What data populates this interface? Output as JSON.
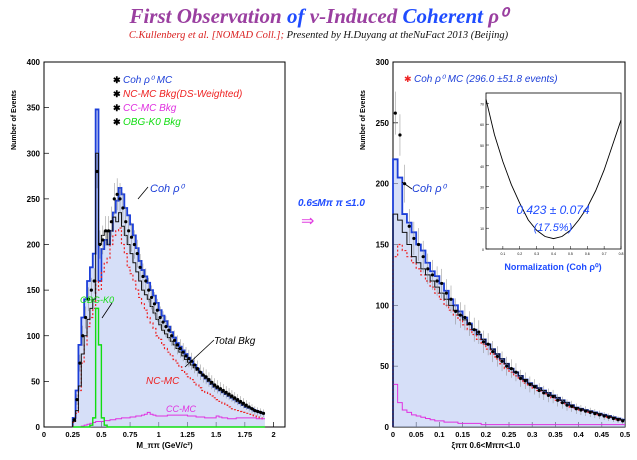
{
  "slide": {
    "title_parts": [
      {
        "text": "First Observation",
        "color": "#9a3fa0"
      },
      {
        "text": " of ",
        "color": "#1f4cff"
      },
      {
        "text": "ν-Induced",
        "color": "#9a3fa0"
      },
      {
        "text": " Coherent ",
        "color": "#1f4cff"
      },
      {
        "text": "ρ⁰",
        "color": "#9a3fa0"
      }
    ],
    "subtitle_parts": [
      {
        "text": "C.Kullenberg et al. [NOMAD Coll.];",
        "color": "#d92020"
      },
      {
        "text": "   Presented  by  H.Duyang  at  theNuFact 2013 (Beijing)",
        "color": "#111111"
      }
    ],
    "cut_label": "0.6≤Mπ π ≤1.0",
    "arrow": "⇒"
  },
  "colors": {
    "coh": "#1d3fd8",
    "coh_fill": "#b4c4f2",
    "nc": "#ee2222",
    "cc": "#e030e0",
    "obg": "#11dd11",
    "total": "#111111",
    "data": "#000000",
    "note_blue": "#1f4cff",
    "note_red": "#e03030"
  },
  "chart_data": [
    {
      "type": "histogram",
      "ylabel": "Number of Events",
      "xlabel": "M_ππ (GeV/c²)",
      "xlim": [
        0,
        2.1
      ],
      "ylim": [
        0,
        400
      ],
      "xticks": [
        0,
        0.25,
        0.5,
        0.75,
        1,
        1.25,
        1.5,
        1.75,
        2
      ],
      "xtick_labels": [
        "0",
        "0.25",
        "0.5",
        "0.75",
        "1",
        "1.25",
        "1.5",
        "1.75",
        "2"
      ],
      "yticks": [
        0,
        50,
        100,
        150,
        200,
        250,
        300,
        350,
        400
      ],
      "legend": [
        {
          "label": "Coh ρ⁰ MC",
          "color": "#1d3fd8"
        },
        {
          "label": "NC-MC Bkg(DS-Weighted)",
          "color": "#ee2222"
        },
        {
          "label": "CC-MC Bkg",
          "color": "#e030e0"
        },
        {
          "label": "OBG-K0 Bkg",
          "color": "#11dd11"
        }
      ],
      "annotations": [
        "Coh ρ⁰",
        "OBG-K0",
        "Total Bkg",
        "NC-MC",
        "CC-MC"
      ],
      "bin_width": 0.025,
      "bin_start": 0.25,
      "series": [
        {
          "name": "Coh ρ⁰ MC",
          "values": [
            10,
            40,
            90,
            120,
            140,
            160,
            175,
            190,
            348,
            160,
            195,
            205,
            200,
            215,
            235,
            248,
            262,
            255,
            240,
            232,
            222,
            210,
            196,
            182,
            172,
            165,
            158,
            150,
            144,
            136,
            128,
            122,
            116,
            110,
            104,
            98,
            92,
            88,
            84,
            80,
            76,
            72,
            68,
            64,
            60,
            56,
            53,
            50,
            47,
            44,
            42,
            40,
            38,
            36,
            34,
            32,
            30,
            28,
            26,
            24,
            22,
            21,
            20,
            18,
            17,
            16,
            15
          ]
        },
        {
          "name": "NC-MC Bkg(DS-Weighted)",
          "values": [
            5,
            15,
            40,
            70,
            90,
            110,
            120,
            130,
            160,
            150,
            170,
            180,
            185,
            200,
            210,
            215,
            218,
            200,
            190,
            175,
            168,
            160,
            150,
            142,
            135,
            128,
            120,
            114,
            108,
            100,
            96,
            90,
            86,
            82,
            78,
            74,
            70,
            66,
            62,
            58,
            55,
            52,
            49,
            46,
            43,
            40,
            38,
            36,
            34,
            32,
            30,
            28,
            26,
            24,
            22,
            20,
            19,
            18,
            17,
            16,
            15,
            14,
            13,
            12,
            11,
            10,
            9
          ]
        },
        {
          "name": "CC-MC Bkg",
          "values": [
            0,
            0,
            0,
            1,
            2,
            3,
            4,
            5,
            6,
            6,
            6,
            7,
            7,
            8,
            8,
            9,
            9,
            10,
            10,
            10,
            11,
            11,
            12,
            12,
            13,
            14,
            16,
            14,
            13,
            12,
            12,
            12,
            12,
            13,
            13,
            13,
            13,
            13,
            13,
            13,
            12,
            12,
            12,
            11,
            11,
            11,
            10,
            10,
            10,
            10,
            12,
            11,
            10,
            10,
            9,
            9,
            9,
            10,
            10,
            10,
            10,
            10,
            10,
            10,
            9,
            9,
            9
          ]
        },
        {
          "name": "OBG-K0 Bkg",
          "values": [
            0,
            0,
            0,
            0,
            0,
            0,
            2,
            10,
            130,
            90,
            10,
            2,
            0,
            0,
            0,
            0,
            0,
            0,
            0,
            0,
            0,
            0,
            0,
            0,
            0,
            0,
            0,
            0,
            0,
            0,
            0,
            0,
            0,
            0,
            0,
            0,
            0,
            0,
            0,
            0,
            0,
            0,
            0,
            0,
            0,
            0,
            0,
            0,
            0,
            0,
            0,
            0,
            0,
            0,
            0,
            0,
            0,
            0,
            0,
            0,
            0,
            0,
            0,
            0,
            0,
            0,
            0
          ]
        },
        {
          "name": "Total Bkg",
          "values": [
            6,
            18,
            45,
            80,
            100,
            118,
            130,
            140,
            300,
            200,
            210,
            215,
            200,
            215,
            230,
            225,
            235,
            220,
            210,
            200,
            190,
            180,
            170,
            160,
            150,
            145,
            140,
            132,
            125,
            118,
            112,
            106,
            102,
            98,
            94,
            90,
            86,
            82,
            78,
            74,
            71,
            68,
            65,
            62,
            59,
            56,
            53,
            50,
            47,
            44,
            42,
            40,
            38,
            36,
            34,
            32,
            30,
            28,
            26,
            24,
            22,
            21,
            20,
            18,
            17,
            16,
            15
          ]
        },
        {
          "name": "Data",
          "values": [
            8,
            30,
            70,
            100,
            120,
            140,
            150,
            160,
            280,
            200,
            205,
            215,
            215,
            225,
            250,
            255,
            250,
            240,
            225,
            215,
            208,
            200,
            190,
            175,
            165,
            160,
            150,
            142,
            135,
            128,
            120,
            115,
            110,
            106,
            100,
            95,
            90,
            86,
            82,
            78,
            75,
            72,
            68,
            64,
            60,
            57,
            55,
            52,
            49,
            46,
            44,
            42,
            40,
            38,
            36,
            34,
            32,
            30,
            28,
            26,
            24,
            22,
            20,
            18,
            17,
            16,
            15
          ]
        }
      ]
    },
    {
      "type": "histogram",
      "ylabel": "Number of Events",
      "xlabel": "ξππ   0.6<Mππ<1.0",
      "xlim": [
        0,
        0.5
      ],
      "ylim": [
        0,
        300
      ],
      "xticks": [
        0,
        0.05,
        0.1,
        0.15,
        0.2,
        0.25,
        0.3,
        0.35,
        0.4,
        0.45,
        0.5
      ],
      "xtick_labels": [
        "0",
        "0.05",
        "0.1",
        "0.15",
        "0.2",
        "0.25",
        "0.3",
        "0.35",
        "0.4",
        "0.45",
        "0.5"
      ],
      "yticks": [
        0,
        50,
        100,
        150,
        200,
        250,
        300
      ],
      "legend": [
        {
          "label": "Coh ρ⁰ MC (296.0 ±51.8 events)",
          "color": "#1d3fd8"
        }
      ],
      "annotations": [
        "Coh ρ⁰"
      ],
      "bin_width": 0.01,
      "series": [
        {
          "name": "Coh ρ⁰ MC",
          "values": [
            220,
            205,
            175,
            168,
            160,
            150,
            145,
            135,
            128,
            124,
            118,
            112,
            105,
            100,
            95,
            90,
            85,
            80,
            76,
            72,
            68,
            64,
            60,
            56,
            52,
            48,
            45,
            42,
            39,
            36,
            34,
            32,
            30,
            28,
            26,
            24,
            22,
            20,
            18,
            16,
            15,
            14,
            13,
            12,
            11,
            10,
            9,
            8,
            7,
            6
          ]
        },
        {
          "name": "NC-MC Bkg",
          "values": [
            140,
            150,
            145,
            140,
            135,
            130,
            125,
            120,
            115,
            110,
            105,
            100,
            96,
            92,
            88,
            84,
            80,
            76,
            72,
            68,
            64,
            60,
            56,
            52,
            48,
            45,
            42,
            39,
            36,
            34,
            32,
            30,
            28,
            26,
            24,
            22,
            20,
            18,
            16,
            15,
            14,
            13,
            12,
            11,
            10,
            9,
            8,
            7,
            6,
            5
          ]
        },
        {
          "name": "CC-MC Bkg",
          "values": [
            35,
            20,
            14,
            12,
            10,
            9,
            8,
            7,
            6,
            5,
            5,
            4,
            4,
            4,
            3,
            3,
            3,
            3,
            3,
            2,
            2,
            2,
            2,
            2,
            2,
            2,
            2,
            2,
            2,
            2,
            2,
            2,
            2,
            2,
            2,
            2,
            2,
            2,
            2,
            2,
            2,
            2,
            2,
            2,
            2,
            2,
            2,
            2,
            2,
            2
          ]
        },
        {
          "name": "Total Bkg",
          "values": [
            175,
            170,
            160,
            150,
            140,
            135,
            130,
            125,
            120,
            115,
            110,
            105,
            100,
            96,
            92,
            88,
            84,
            80,
            76,
            72,
            68,
            64,
            60,
            56,
            52,
            48,
            45,
            42,
            39,
            36,
            34,
            32,
            30,
            28,
            26,
            24,
            22,
            20,
            18,
            16,
            15,
            14,
            13,
            12,
            11,
            10,
            9,
            8,
            7,
            6
          ]
        },
        {
          "name": "Data",
          "values": [
            258,
            240,
            200,
            165,
            155,
            150,
            140,
            130,
            125,
            120,
            118,
            110,
            105,
            95,
            92,
            90,
            85,
            80,
            78,
            70,
            68,
            62,
            58,
            54,
            50,
            48,
            45,
            40,
            38,
            35,
            33,
            30,
            28,
            26,
            25,
            22,
            20,
            18,
            17,
            15,
            14,
            13,
            12,
            11,
            10,
            9,
            8,
            7,
            6,
            5
          ]
        }
      ]
    },
    {
      "type": "line",
      "xlabel": "Normalization (Coh ρ⁰)",
      "xticks": [
        0.1,
        0.2,
        0.3,
        0.4,
        0.5,
        0.6,
        0.7,
        0.8
      ],
      "xtick_labels": [
        "0.1",
        "0.2",
        "0.3",
        "0.4",
        "0.5",
        "0.6",
        "0.7",
        "0.8"
      ],
      "yticks": [
        0,
        10,
        20,
        30,
        40,
        50,
        60,
        70
      ],
      "xlim": [
        0,
        0.8
      ],
      "ylim": [
        0,
        75
      ],
      "values": [
        [
          0,
          72
        ],
        [
          0.05,
          55
        ],
        [
          0.1,
          42
        ],
        [
          0.15,
          31
        ],
        [
          0.2,
          22
        ],
        [
          0.25,
          14
        ],
        [
          0.3,
          9
        ],
        [
          0.35,
          6
        ],
        [
          0.4,
          5
        ],
        [
          0.45,
          6
        ],
        [
          0.5,
          9
        ],
        [
          0.55,
          14
        ],
        [
          0.6,
          20
        ],
        [
          0.65,
          28
        ],
        [
          0.7,
          38
        ],
        [
          0.75,
          50
        ],
        [
          0.8,
          62
        ]
      ],
      "annotations": [
        "0.423 ± 0.074",
        "(17.5%)"
      ]
    }
  ]
}
